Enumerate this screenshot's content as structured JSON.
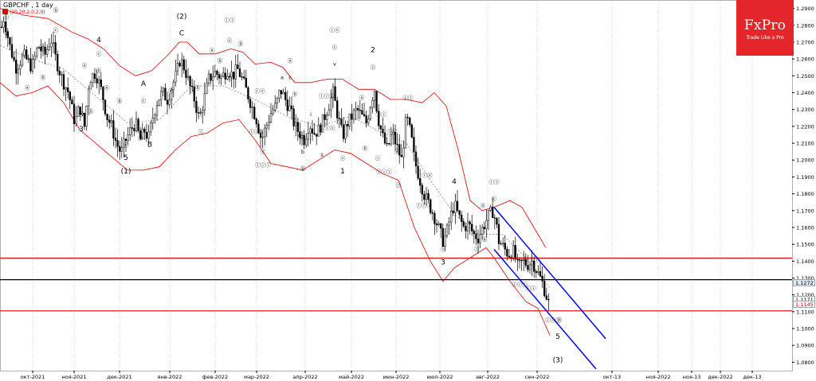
{
  "header": {
    "symbol_title": "GBPCHF , 1 day",
    "indicator_label": "(20,20,2,0,2,0)"
  },
  "brand": {
    "name": "FxPro",
    "tagline": "Trade Like a Pro",
    "color": "#e3262b"
  },
  "colors": {
    "candles": "#000000",
    "bands": "#e00000",
    "mid_band": "#777777",
    "channel": "#0000ff",
    "support_resistance": "#e00000",
    "current_price": "#000000"
  },
  "chart_data": {
    "type": "candlestick",
    "price_axis": {
      "ylim": [
        1.075,
        1.295
      ],
      "ticks": [
        1.29,
        1.28,
        1.27,
        1.26,
        1.25,
        1.24,
        1.23,
        1.22,
        1.21,
        1.2,
        1.19,
        1.18,
        1.17,
        1.16,
        1.15,
        1.14,
        1.13,
        1.12,
        1.11,
        1.1,
        1.09,
        1.08
      ]
    },
    "time_axis": [
      "окт-2021",
      "ноя-2021",
      "дек-2021",
      "янв-2022",
      "фев-2022",
      "мар-2022",
      "апр-2022",
      "май-2022",
      "июн-2022",
      "июл-2022",
      "авг-2022",
      "сен-2022",
      "окт-13",
      "ноя-2022",
      "ноя-13",
      "дек-2022",
      "дек-13"
    ],
    "price_tags": [
      {
        "value": 1.1272,
        "text": "1.1272",
        "bg": "#dfe8f5",
        "fg": "#000000"
      },
      {
        "value": 1.1171,
        "text": "1.1171",
        "bg": "#ffffff",
        "fg": "#000000"
      },
      {
        "value": 1.1145,
        "text": "1.1145",
        "bg": "#ffffff",
        "fg": "#e00000"
      }
    ],
    "horizontal_lines": [
      {
        "name": "resistance",
        "value": 1.1418,
        "color": "#e00000"
      },
      {
        "name": "current-price",
        "value": 1.129,
        "color": "#000000"
      },
      {
        "name": "support",
        "value": 1.1105,
        "color": "#e00000"
      }
    ],
    "close_path": [
      [
        0,
        1.275
      ],
      [
        5,
        1.285
      ],
      [
        12,
        1.268
      ],
      [
        20,
        1.255
      ],
      [
        30,
        1.262
      ],
      [
        40,
        1.255
      ],
      [
        48,
        1.268
      ],
      [
        56,
        1.262
      ],
      [
        64,
        1.272
      ],
      [
        70,
        1.26
      ],
      [
        78,
        1.248
      ],
      [
        86,
        1.24
      ],
      [
        94,
        1.222
      ],
      [
        100,
        1.232
      ],
      [
        106,
        1.22
      ],
      [
        112,
        1.248
      ],
      [
        120,
        1.252
      ],
      [
        128,
        1.24
      ],
      [
        134,
        1.226
      ],
      [
        140,
        1.22
      ],
      [
        146,
        1.21
      ],
      [
        152,
        1.204
      ],
      [
        158,
        1.212
      ],
      [
        164,
        1.218
      ],
      [
        170,
        1.222
      ],
      [
        176,
        1.212
      ],
      [
        182,
        1.218
      ],
      [
        186,
        1.212
      ],
      [
        192,
        1.226
      ],
      [
        198,
        1.236
      ],
      [
        204,
        1.24
      ],
      [
        210,
        1.236
      ],
      [
        216,
        1.244
      ],
      [
        222,
        1.252
      ],
      [
        226,
        1.26
      ],
      [
        232,
        1.254
      ],
      [
        238,
        1.244
      ],
      [
        244,
        1.236
      ],
      [
        250,
        1.224
      ],
      [
        256,
        1.236
      ],
      [
        262,
        1.248
      ],
      [
        270,
        1.252
      ],
      [
        278,
        1.249
      ],
      [
        286,
        1.254
      ],
      [
        292,
        1.25
      ],
      [
        298,
        1.254
      ],
      [
        304,
        1.248
      ],
      [
        310,
        1.24
      ],
      [
        316,
        1.232
      ],
      [
        322,
        1.224
      ],
      [
        328,
        1.212
      ],
      [
        334,
        1.22
      ],
      [
        340,
        1.228
      ],
      [
        346,
        1.232
      ],
      [
        352,
        1.242
      ],
      [
        358,
        1.236
      ],
      [
        364,
        1.23
      ],
      [
        370,
        1.22
      ],
      [
        376,
        1.216
      ],
      [
        382,
        1.212
      ],
      [
        388,
        1.222
      ],
      [
        394,
        1.216
      ],
      [
        400,
        1.218
      ],
      [
        406,
        1.224
      ],
      [
        412,
        1.232
      ],
      [
        418,
        1.24
      ],
      [
        424,
        1.226
      ],
      [
        430,
        1.214
      ],
      [
        436,
        1.222
      ],
      [
        442,
        1.226
      ],
      [
        448,
        1.23
      ],
      [
        454,
        1.226
      ],
      [
        460,
        1.222
      ],
      [
        466,
        1.236
      ],
      [
        470,
        1.242
      ],
      [
        474,
        1.226
      ],
      [
        480,
        1.214
      ],
      [
        486,
        1.206
      ],
      [
        492,
        1.216
      ],
      [
        498,
        1.208
      ],
      [
        504,
        1.2
      ],
      [
        510,
        1.226
      ],
      [
        516,
        1.214
      ],
      [
        520,
        1.2
      ],
      [
        526,
        1.19
      ],
      [
        532,
        1.18
      ],
      [
        538,
        1.174
      ],
      [
        544,
        1.168
      ],
      [
        550,
        1.16
      ],
      [
        556,
        1.152
      ],
      [
        560,
        1.156
      ],
      [
        564,
        1.164
      ],
      [
        570,
        1.174
      ],
      [
        576,
        1.166
      ],
      [
        582,
        1.16
      ],
      [
        588,
        1.162
      ],
      [
        594,
        1.156
      ],
      [
        600,
        1.154
      ],
      [
        606,
        1.16
      ],
      [
        612,
        1.166
      ],
      [
        618,
        1.17
      ],
      [
        622,
        1.164
      ],
      [
        626,
        1.152
      ],
      [
        632,
        1.148
      ],
      [
        638,
        1.144
      ],
      [
        644,
        1.146
      ],
      [
        650,
        1.136
      ],
      [
        656,
        1.14
      ],
      [
        662,
        1.138
      ],
      [
        668,
        1.14
      ],
      [
        672,
        1.136
      ],
      [
        676,
        1.132
      ],
      [
        680,
        1.128
      ],
      [
        684,
        1.122
      ],
      [
        688,
        1.116
      ],
      [
        692,
        1.11
      ]
    ],
    "bollinger": {
      "upper": [
        [
          0,
          1.29
        ],
        [
          30,
          1.286
        ],
        [
          60,
          1.284
        ],
        [
          90,
          1.276
        ],
        [
          110,
          1.272
        ],
        [
          130,
          1.266
        ],
        [
          150,
          1.256
        ],
        [
          170,
          1.25
        ],
        [
          190,
          1.253
        ],
        [
          210,
          1.262
        ],
        [
          225,
          1.27
        ],
        [
          235,
          1.27
        ],
        [
          250,
          1.263
        ],
        [
          270,
          1.263
        ],
        [
          290,
          1.266
        ],
        [
          305,
          1.264
        ],
        [
          320,
          1.257
        ],
        [
          340,
          1.258
        ],
        [
          355,
          1.255
        ],
        [
          370,
          1.246
        ],
        [
          390,
          1.246
        ],
        [
          410,
          1.248
        ],
        [
          430,
          1.248
        ],
        [
          450,
          1.242
        ],
        [
          470,
          1.242
        ],
        [
          490,
          1.236
        ],
        [
          510,
          1.236
        ],
        [
          530,
          1.234
        ],
        [
          545,
          1.24
        ],
        [
          560,
          1.232
        ],
        [
          575,
          1.206
        ],
        [
          590,
          1.176
        ],
        [
          605,
          1.17
        ],
        [
          620,
          1.172
        ],
        [
          640,
          1.176
        ],
        [
          655,
          1.172
        ],
        [
          670,
          1.16
        ],
        [
          685,
          1.148
        ]
      ],
      "lower": [
        [
          0,
          1.246
        ],
        [
          20,
          1.238
        ],
        [
          40,
          1.24
        ],
        [
          60,
          1.244
        ],
        [
          80,
          1.234
        ],
        [
          100,
          1.218
        ],
        [
          120,
          1.21
        ],
        [
          140,
          1.202
        ],
        [
          160,
          1.194
        ],
        [
          180,
          1.194
        ],
        [
          200,
          1.196
        ],
        [
          220,
          1.206
        ],
        [
          240,
          1.214
        ],
        [
          260,
          1.216
        ],
        [
          280,
          1.222
        ],
        [
          300,
          1.224
        ],
        [
          320,
          1.212
        ],
        [
          340,
          1.198
        ],
        [
          360,
          1.196
        ],
        [
          380,
          1.194
        ],
        [
          400,
          1.2
        ],
        [
          420,
          1.206
        ],
        [
          440,
          1.204
        ],
        [
          460,
          1.198
        ],
        [
          480,
          1.192
        ],
        [
          500,
          1.188
        ],
        [
          520,
          1.16
        ],
        [
          540,
          1.14
        ],
        [
          556,
          1.128
        ],
        [
          570,
          1.136
        ],
        [
          590,
          1.142
        ],
        [
          600,
          1.145
        ],
        [
          610,
          1.148
        ],
        [
          620,
          1.142
        ],
        [
          640,
          1.128
        ],
        [
          660,
          1.116
        ],
        [
          675,
          1.112
        ],
        [
          690,
          1.096
        ]
      ],
      "middle": [
        [
          0,
          1.268
        ],
        [
          40,
          1.26
        ],
        [
          80,
          1.254
        ],
        [
          120,
          1.238
        ],
        [
          160,
          1.222
        ],
        [
          200,
          1.224
        ],
        [
          240,
          1.244
        ],
        [
          280,
          1.244
        ],
        [
          320,
          1.236
        ],
        [
          360,
          1.226
        ],
        [
          400,
          1.22
        ],
        [
          440,
          1.226
        ],
        [
          480,
          1.216
        ],
        [
          510,
          1.21
        ],
        [
          540,
          1.188
        ],
        [
          570,
          1.168
        ],
        [
          600,
          1.156
        ],
        [
          630,
          1.156
        ],
        [
          660,
          1.142
        ],
        [
          690,
          1.124
        ]
      ]
    },
    "channel": {
      "upper_line": [
        [
          620,
          1.172
        ],
        [
          760,
          1.094
        ]
      ],
      "lower_line": [
        [
          620,
          1.147
        ],
        [
          748,
          1.076
        ]
      ]
    },
    "wave_labels": [
      {
        "text": "ⓒ",
        "x": 8,
        "y": 1.284
      },
      {
        "text": "②",
        "x": 8,
        "y": 1.274
      },
      {
        "text": "ⓑ",
        "x": 70,
        "y": 1.288
      },
      {
        "text": "ⓒ",
        "x": 70,
        "y": 1.276
      },
      {
        "text": "ⓐ",
        "x": 52,
        "y": 1.266
      },
      {
        "text": "ⓐ",
        "x": 34,
        "y": 1.242
      },
      {
        "text": "ⓑ",
        "x": 54,
        "y": 1.248
      },
      {
        "text": "ⓐ",
        "x": 106,
        "y": 1.255
      },
      {
        "text": "ⓒ",
        "x": 102,
        "y": 1.226
      },
      {
        "text": "ⓑ",
        "x": 114,
        "y": 1.228
      },
      {
        "text": "3",
        "x": 102,
        "y": 1.217
      },
      {
        "text": "4",
        "x": 124,
        "y": 1.27
      },
      {
        "text": "ⓒ",
        "x": 124,
        "y": 1.262
      },
      {
        "text": "ⓑ",
        "x": 124,
        "y": 1.252
      },
      {
        "text": "ⓐ",
        "x": 134,
        "y": 1.242
      },
      {
        "text": "ⓑ",
        "x": 150,
        "y": 1.234
      },
      {
        "text": "ⓒ",
        "x": 158,
        "y": 1.208
      },
      {
        "text": "5",
        "x": 158,
        "y": 1.2
      },
      {
        "text": "(1)",
        "x": 158,
        "y": 1.192
      },
      {
        "text": "ⓑ",
        "x": 176,
        "y": 1.212
      },
      {
        "text": "A",
        "x": 180,
        "y": 1.244
      },
      {
        "text": "ⓒ",
        "x": 180,
        "y": 1.234
      },
      {
        "text": "B",
        "x": 188,
        "y": 1.208
      },
      {
        "text": "ⓐ",
        "x": 214,
        "y": 1.24
      },
      {
        "text": "(2)",
        "x": 228,
        "y": 1.284
      },
      {
        "text": "C",
        "x": 228,
        "y": 1.274
      },
      {
        "text": "ⓐ",
        "x": 242,
        "y": 1.24
      },
      {
        "text": "ⓑ",
        "x": 248,
        "y": 1.242
      },
      {
        "text": "ⓒ",
        "x": 252,
        "y": 1.226
      },
      {
        "text": "ⓘ",
        "x": 252,
        "y": 1.216
      },
      {
        "text": "ⓐ",
        "x": 266,
        "y": 1.264
      },
      {
        "text": "ⓑ",
        "x": 276,
        "y": 1.258
      },
      {
        "text": "ⓒ",
        "x": 288,
        "y": 1.27
      },
      {
        "text": "ⓘ",
        "x": 290,
        "y": 1.248
      },
      {
        "text": "ⓘⓘ",
        "x": 288,
        "y": 1.282
      },
      {
        "text": "ⓑ",
        "x": 302,
        "y": 1.268
      },
      {
        "text": "ⓘⓥ",
        "x": 326,
        "y": 1.24
      },
      {
        "text": "ⓘⓘⓘ",
        "x": 322,
        "y": 1.216
      },
      {
        "text": "ⓥ",
        "x": 330,
        "y": 1.204
      },
      {
        "text": "ⓘⓘⓘ",
        "x": 330,
        "y": 1.196
      },
      {
        "text": "ⓐ",
        "x": 364,
        "y": 1.258
      },
      {
        "text": "a",
        "x": 354,
        "y": 1.248
      },
      {
        "text": "c",
        "x": 364,
        "y": 1.248
      },
      {
        "text": "ⓑ",
        "x": 370,
        "y": 1.238
      },
      {
        "text": "ⓒ",
        "x": 380,
        "y": 1.212
      },
      {
        "text": "a",
        "x": 376,
        "y": 1.214
      },
      {
        "text": "i",
        "x": 390,
        "y": 1.226
      },
      {
        "text": "b",
        "x": 380,
        "y": 1.204
      },
      {
        "text": "ii",
        "x": 404,
        "y": 1.202
      },
      {
        "text": "ⓑ",
        "x": 380,
        "y": 1.194
      },
      {
        "text": "ⓘⓥ",
        "x": 420,
        "y": 1.276
      },
      {
        "text": "ⓒ",
        "x": 420,
        "y": 1.266
      },
      {
        "text": "v",
        "x": 420,
        "y": 1.256
      },
      {
        "text": "ⓘⓘⓘ",
        "x": 410,
        "y": 1.237
      },
      {
        "text": "ⓘⓥ",
        "x": 414,
        "y": 1.218
      },
      {
        "text": "ⓥ",
        "x": 430,
        "y": 1.2
      },
      {
        "text": "1",
        "x": 430,
        "y": 1.192
      },
      {
        "text": "2",
        "x": 468,
        "y": 1.264
      },
      {
        "text": "ⓒ",
        "x": 468,
        "y": 1.254
      },
      {
        "text": "ⓐ",
        "x": 454,
        "y": 1.236
      },
      {
        "text": "ⓑ",
        "x": 458,
        "y": 1.206
      },
      {
        "text": "ⓘⓘ",
        "x": 478,
        "y": 1.226
      },
      {
        "text": "ⓘ",
        "x": 474,
        "y": 1.2
      },
      {
        "text": "ⓘⓥ",
        "x": 492,
        "y": 1.216
      },
      {
        "text": "ⓥ",
        "x": 498,
        "y": 1.204
      },
      {
        "text": "ⓘⓘⓘ",
        "x": 482,
        "y": 1.192
      },
      {
        "text": "ⓘⓘ",
        "x": 512,
        "y": 1.236
      },
      {
        "text": "ⓘ",
        "x": 500,
        "y": 1.184
      },
      {
        "text": "ⓘⓥ",
        "x": 536,
        "y": 1.19
      },
      {
        "text": "ⓘⓘⓘ",
        "x": 532,
        "y": 1.172
      },
      {
        "text": "4",
        "x": 570,
        "y": 1.186
      },
      {
        "text": "ⓥ",
        "x": 556,
        "y": 1.146
      },
      {
        "text": "3",
        "x": 556,
        "y": 1.138
      },
      {
        "text": "ⓐ",
        "x": 606,
        "y": 1.172
      },
      {
        "text": "ⓘⓘ",
        "x": 620,
        "y": 1.186
      },
      {
        "text": "ⓒ",
        "x": 620,
        "y": 1.176
      },
      {
        "text": "ⓑ",
        "x": 608,
        "y": 1.152
      },
      {
        "text": "ⓘ",
        "x": 598,
        "y": 1.146
      },
      {
        "text": "ⓘⓥ",
        "x": 656,
        "y": 1.14
      },
      {
        "text": "ⓘⓘ",
        "x": 670,
        "y": 1.14
      },
      {
        "text": "ⓘⓘⓘ",
        "x": 652,
        "y": 1.125
      },
      {
        "text": "ⓘⓘ",
        "x": 666,
        "y": 1.123
      },
      {
        "text": "ⓘⓘⓘ",
        "x": 694,
        "y": 1.104
      },
      {
        "text": "ⓥ",
        "x": 702,
        "y": 1.104
      },
      {
        "text": "5",
        "x": 700,
        "y": 1.094
      },
      {
        "text": "(3)",
        "x": 700,
        "y": 1.08
      }
    ]
  }
}
